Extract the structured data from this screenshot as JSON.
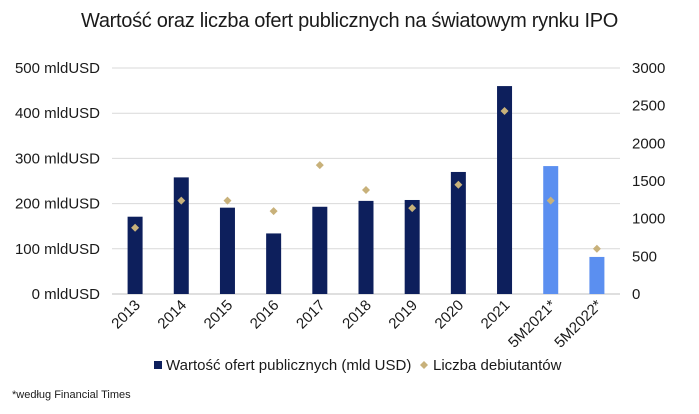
{
  "chart_data": {
    "type": "bar",
    "title": "Wartość oraz liczba ofert publicznych na światowym rynku IPO",
    "categories": [
      "2013",
      "2014",
      "2015",
      "2016",
      "2017",
      "2018",
      "2019",
      "2020",
      "2021",
      "5M2021*",
      "5M2022*"
    ],
    "series": [
      {
        "name": "Wartość ofert publicznych (mld USD)",
        "kind": "bar",
        "axis": "left",
        "values": [
          171,
          258,
          191,
          134,
          193,
          206,
          208,
          270,
          460,
          283,
          82
        ],
        "colors": [
          "#0d1f5c",
          "#0d1f5c",
          "#0d1f5c",
          "#0d1f5c",
          "#0d1f5c",
          "#0d1f5c",
          "#0d1f5c",
          "#0d1f5c",
          "#0d1f5c",
          "#5b8ff0",
          "#5b8ff0"
        ]
      },
      {
        "name": "Liczba debiutantów",
        "kind": "marker",
        "axis": "right",
        "marker": "diamond",
        "color": "#c8b17a",
        "values": [
          880,
          1240,
          1240,
          1100,
          1710,
          1380,
          1140,
          1450,
          2430,
          1240,
          600
        ]
      }
    ],
    "y_left": {
      "min": 0,
      "max": 500,
      "ticks": [
        0,
        100,
        200,
        300,
        400,
        500
      ],
      "tick_labels": [
        "0 mldUSD",
        "100 mldUSD",
        "200 mldUSD",
        "300 mldUSD",
        "400 mldUSD",
        "500 mldUSD"
      ]
    },
    "y_right": {
      "min": 0,
      "max": 3000,
      "ticks": [
        0,
        500,
        1000,
        1500,
        2000,
        2500,
        3000
      ],
      "tick_labels": [
        "0",
        "500",
        "1000",
        "1500",
        "2000",
        "2500",
        "3000"
      ]
    },
    "grid": true,
    "grid_color": "#d9d9d9",
    "legend_position": "bottom",
    "footnote": "*według Financial Times"
  }
}
